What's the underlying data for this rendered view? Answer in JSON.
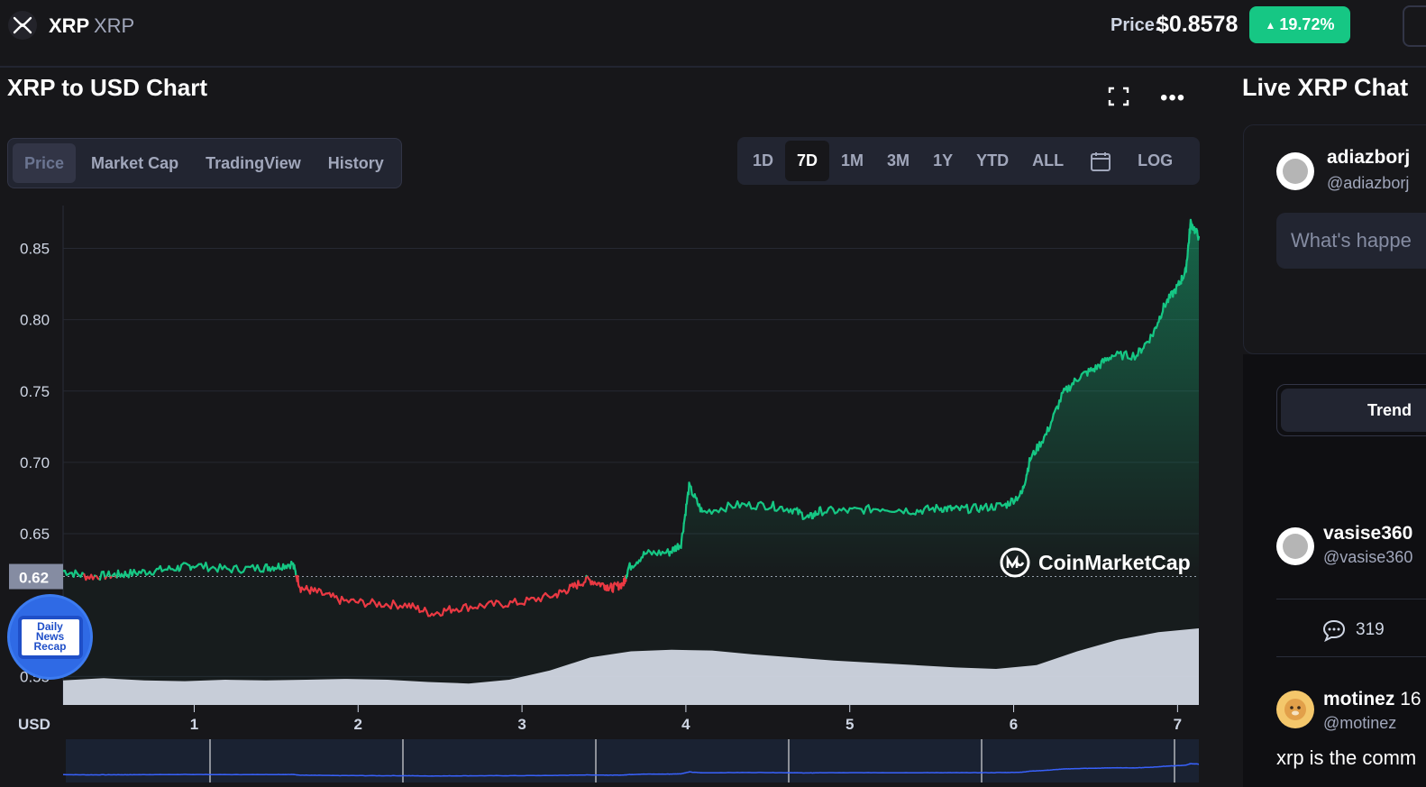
{
  "header": {
    "coin_name": "XRP",
    "coin_symbol": "XRP",
    "price_label": "Price:",
    "price_value": "$0.8578",
    "change": "19.72%",
    "change_direction": "up",
    "change_color": "#16c784"
  },
  "chart_section": {
    "title": "XRP to USD Chart",
    "tabs": [
      "Price",
      "Market Cap",
      "TradingView",
      "History"
    ],
    "active_tab": "Price",
    "ranges": [
      "1D",
      "7D",
      "1M",
      "3M",
      "1Y",
      "YTD",
      "ALL"
    ],
    "active_range": "7D",
    "log_label": "LOG",
    "watermark": "CoinMarketCap",
    "news_badge": [
      "Daily",
      "News",
      "Recap"
    ]
  },
  "chat": {
    "title": "Live XRP Chat",
    "composer_user": {
      "name": "adiazborj",
      "handle": "@adiazborj"
    },
    "composer_placeholder": "What's happe",
    "trending_tab": "Trend",
    "posts": [
      {
        "name": "vasise360",
        "handle": "@vasise360",
        "comments": "319"
      },
      {
        "name": "motinez",
        "name_suffix": "16",
        "handle": "@motinez",
        "text": "xrp is the comm"
      }
    ]
  },
  "chart_data": {
    "type": "line",
    "currency_label": "USD",
    "x_ticks": [
      "1",
      "2",
      "3",
      "4",
      "5",
      "6",
      "7"
    ],
    "y_ticks": [
      "0.85",
      "0.80",
      "0.75",
      "0.70",
      "0.65",
      "0.55"
    ],
    "reference_price": "0.62",
    "ylim": [
      0.53,
      0.88
    ],
    "xlim": [
      0.2,
      7.13
    ],
    "up_color": "#16c784",
    "down_color": "#ea3943",
    "series": [
      {
        "x": [
          0.2,
          0.35,
          0.5,
          0.6,
          0.75,
          0.9,
          1.0,
          1.2,
          1.4,
          1.5,
          1.6,
          1.65,
          1.75,
          1.9,
          2.1,
          2.3,
          2.45,
          2.6,
          2.8,
          3.0,
          3.2,
          3.3,
          3.4,
          3.5,
          3.55,
          3.62,
          3.65,
          3.75,
          3.9,
          3.97,
          4.02,
          4.1,
          4.3,
          4.5,
          4.65,
          4.75,
          4.82,
          5.0,
          5.2,
          5.4,
          5.55,
          5.65,
          5.8,
          5.95,
          6.05,
          6.1,
          6.2,
          6.3,
          6.4,
          6.5,
          6.6,
          6.75,
          6.85,
          6.92,
          7.0,
          7.05,
          7.08,
          7.13
        ],
        "y": [
          0.624,
          0.62,
          0.621,
          0.622,
          0.624,
          0.626,
          0.628,
          0.625,
          0.626,
          0.627,
          0.629,
          0.612,
          0.609,
          0.603,
          0.601,
          0.6,
          0.594,
          0.598,
          0.6,
          0.602,
          0.607,
          0.612,
          0.618,
          0.614,
          0.612,
          0.615,
          0.626,
          0.636,
          0.637,
          0.643,
          0.683,
          0.665,
          0.67,
          0.67,
          0.667,
          0.661,
          0.666,
          0.666,
          0.668,
          0.666,
          0.668,
          0.667,
          0.668,
          0.67,
          0.678,
          0.702,
          0.72,
          0.748,
          0.76,
          0.766,
          0.775,
          0.775,
          0.79,
          0.81,
          0.823,
          0.834,
          0.868,
          0.858
        ]
      }
    ],
    "volume": [
      0.32,
      0.35,
      0.32,
      0.31,
      0.33,
      0.32,
      0.33,
      0.34,
      0.33,
      0.3,
      0.28,
      0.33,
      0.45,
      0.62,
      0.7,
      0.72,
      0.71,
      0.66,
      0.62,
      0.58,
      0.55,
      0.52,
      0.49,
      0.47,
      0.52,
      0.7,
      0.85,
      0.95,
      1.0
    ]
  }
}
